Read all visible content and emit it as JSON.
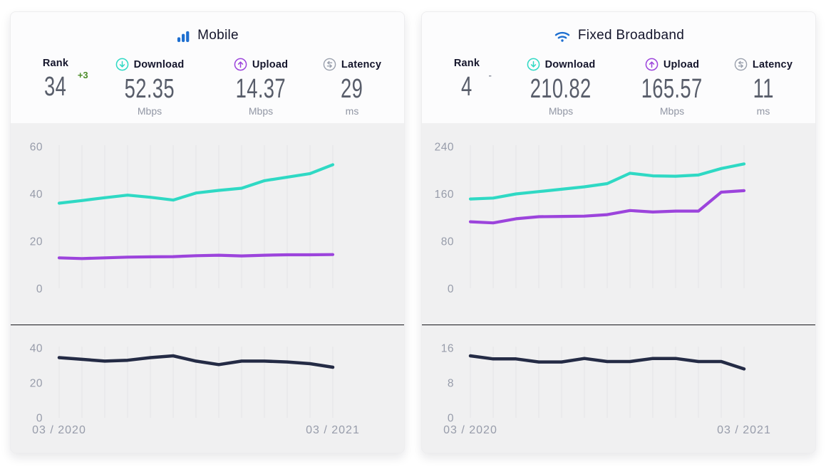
{
  "colors": {
    "brand_blue": "#1e6fd0",
    "navy_text": "#14152b",
    "value_gray": "#585d6a",
    "unit_gray": "#9196a4",
    "tick_gray": "#979caa",
    "gridline": "#e3e3e6",
    "download_teal": "#2fd9c4",
    "upload_purple": "#9c44dc",
    "latency_navy": "#242b45",
    "rank_up_green": "#4c8c28",
    "rank_flat_gray": "#9196a4",
    "chart_bg": "#f0f0f1",
    "header_bg": "#fcfcfd"
  },
  "cards": [
    {
      "title": "Mobile",
      "stats": [
        {
          "label": "Rank",
          "value": "34",
          "change": "+3",
          "unit": ""
        },
        {
          "label": "Download",
          "value": "52.35",
          "unit": "Mbps"
        },
        {
          "label": "Upload",
          "value": "14.37",
          "unit": "Mbps"
        },
        {
          "label": "Latency",
          "value": "29",
          "unit": "ms"
        }
      ]
    },
    {
      "title": "Fixed Broadband",
      "stats": [
        {
          "label": "Rank",
          "value": "4",
          "change": "-",
          "unit": ""
        },
        {
          "label": "Download",
          "value": "210.82",
          "unit": "Mbps"
        },
        {
          "label": "Upload",
          "value": "165.57",
          "unit": "Mbps"
        },
        {
          "label": "Latency",
          "value": "11",
          "unit": "ms"
        }
      ]
    }
  ],
  "chart_data": [
    {
      "id": "mobile-speed",
      "type": "line",
      "kind": "speed",
      "yticks": [
        0,
        20,
        40,
        60
      ],
      "ylim": [
        0,
        60
      ],
      "grid": "vertical",
      "x_range": [
        "03 / 2020",
        "03 / 2021"
      ],
      "series": [
        {
          "name": "Download (Mbps)",
          "color": "#2fd9c4",
          "values": [
            36.1,
            37.2,
            38.4,
            39.5,
            38.6,
            37.4,
            40.4,
            41.5,
            42.4,
            45.6,
            47.1,
            48.6,
            52.35
          ]
        },
        {
          "name": "Upload (Mbps)",
          "color": "#9c44dc",
          "values": [
            13.0,
            12.7,
            13.0,
            13.3,
            13.4,
            13.5,
            13.9,
            14.1,
            13.8,
            14.1,
            14.3,
            14.3,
            14.37
          ]
        }
      ]
    },
    {
      "id": "mobile-latency",
      "type": "line",
      "kind": "latency",
      "yticks": [
        0,
        20,
        40
      ],
      "ylim": [
        0,
        44
      ],
      "grid": "vertical",
      "x_labels": [
        "03 / 2020",
        "03 / 2021"
      ],
      "series": [
        {
          "name": "Latency (ms)",
          "color": "#242b45",
          "values": [
            34.5,
            33.5,
            32.5,
            33.0,
            34.5,
            35.5,
            32.5,
            30.5,
            32.5,
            32.5,
            32.0,
            31.0,
            29.0
          ]
        }
      ]
    },
    {
      "id": "fixed-speed",
      "type": "line",
      "kind": "speed",
      "yticks": [
        0,
        80,
        160,
        240
      ],
      "ylim": [
        0,
        240
      ],
      "grid": "vertical",
      "x_range": [
        "03 / 2020",
        "03 / 2021"
      ],
      "series": [
        {
          "name": "Download (Mbps)",
          "color": "#2fd9c4",
          "values": [
            151.5,
            153.0,
            160.0,
            164.0,
            168.0,
            172.0,
            177.5,
            195.0,
            190.5,
            190.0,
            192.0,
            203.0,
            210.82
          ]
        },
        {
          "name": "Upload (Mbps)",
          "color": "#9c44dc",
          "values": [
            113.0,
            111.0,
            118.0,
            121.5,
            122.0,
            122.5,
            125.0,
            132.0,
            129.5,
            131.0,
            131.0,
            163.0,
            165.57
          ]
        }
      ]
    },
    {
      "id": "fixed-latency",
      "type": "line",
      "kind": "latency",
      "yticks": [
        0,
        8,
        16
      ],
      "ylim": [
        0,
        17.6
      ],
      "grid": "vertical",
      "x_labels": [
        "03 / 2020",
        "03 / 2021"
      ],
      "series": [
        {
          "name": "Latency (ms)",
          "color": "#242b45",
          "values": [
            14.2,
            13.5,
            13.5,
            12.8,
            12.8,
            13.6,
            12.9,
            12.9,
            13.6,
            13.6,
            12.9,
            12.9,
            11.2
          ]
        }
      ]
    }
  ]
}
